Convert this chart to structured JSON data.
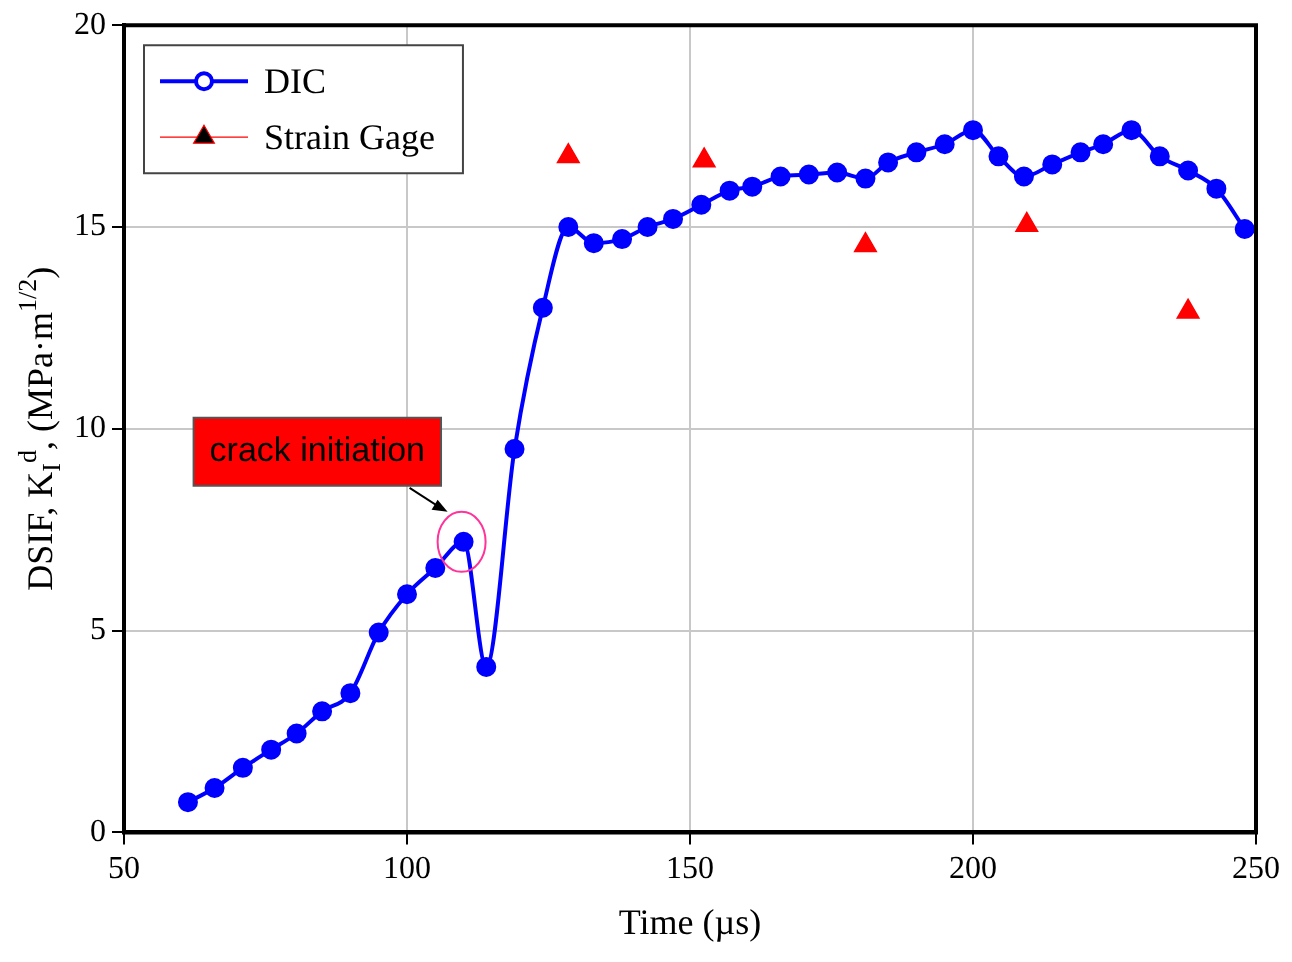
{
  "chart_data": {
    "type": "line",
    "xlabel": "Time (µs)",
    "ylabel": "DSIF, K$_{I}$$^{d}$, (MPa·m$^{1/2}$)",
    "xlim": [
      50,
      250
    ],
    "xticks": [
      50,
      100,
      150,
      200,
      250
    ],
    "ylim": [
      0,
      20
    ],
    "yticks": [
      0,
      5,
      10,
      15,
      20
    ],
    "grid": true,
    "legend": "top left",
    "series": [
      {
        "name": "DIC",
        "color": "#0000ff",
        "marker": "circle",
        "x": [
          61.3,
          66,
          71,
          76,
          80.5,
          85,
          90,
          95,
          100,
          105,
          110,
          114,
          119,
          124,
          128.5,
          133,
          138,
          142.5,
          147,
          152,
          157,
          161,
          166,
          171,
          176,
          181,
          185,
          190,
          195,
          200,
          204.5,
          209,
          214,
          219,
          223,
          228,
          233,
          238,
          243,
          248
        ],
        "values": [
          0.75,
          1.1,
          1.6,
          2.05,
          2.45,
          3.0,
          3.45,
          4.95,
          5.9,
          6.55,
          7.2,
          4.1,
          9.5,
          13.0,
          15.0,
          14.6,
          14.7,
          15.0,
          15.2,
          15.55,
          15.9,
          16.0,
          16.25,
          16.3,
          16.35,
          16.2,
          16.6,
          16.85,
          17.05,
          17.4,
          16.75,
          16.25,
          16.55,
          16.85,
          17.05,
          17.4,
          16.75,
          16.4,
          15.95,
          14.95
        ]
      },
      {
        "name": "Strain Gage",
        "type": "scatter",
        "color": "#ff0000",
        "marker": "triangle",
        "x": [
          128.5,
          152.5,
          181,
          209.5,
          238
        ],
        "values": [
          16.75,
          16.65,
          14.55,
          15.05,
          12.9
        ]
      }
    ],
    "annotations": [
      {
        "text": "crack initiation",
        "x": 110,
        "y": 7.2
      }
    ]
  }
}
